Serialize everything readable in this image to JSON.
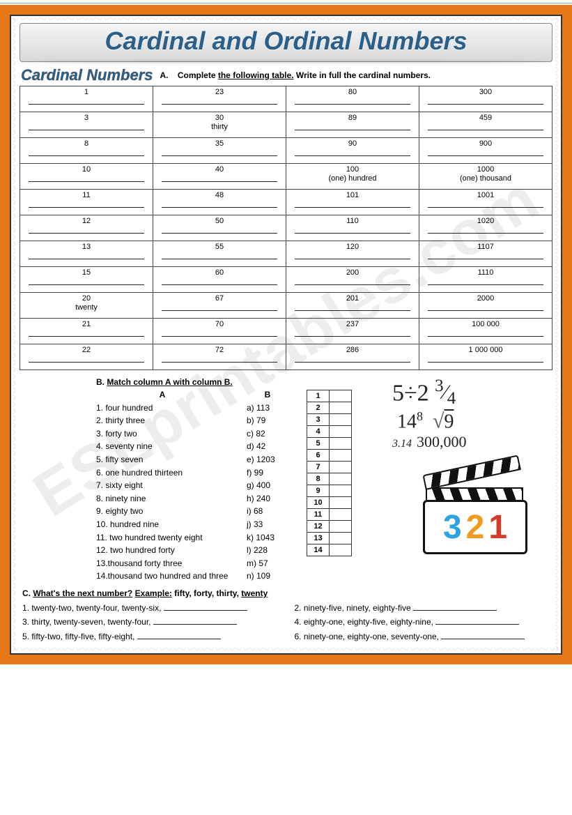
{
  "watermark": "ESLprintables.com",
  "page_title": "Cardinal and Ordinal Numbers",
  "section_label": "Cardinal Numbers",
  "sectionA": {
    "letter": "A.",
    "instruction_pre": "Complete ",
    "instruction_ul": "the following table.",
    "instruction_post": " Write in full the cardinal numbers.",
    "rows": [
      [
        {
          "n": "1",
          "a": ""
        },
        {
          "n": "23",
          "a": ""
        },
        {
          "n": "80",
          "a": ""
        },
        {
          "n": "300",
          "a": ""
        }
      ],
      [
        {
          "n": "3",
          "a": ""
        },
        {
          "n": "30",
          "a": "thirty"
        },
        {
          "n": "89",
          "a": ""
        },
        {
          "n": "459",
          "a": ""
        }
      ],
      [
        {
          "n": "8",
          "a": ""
        },
        {
          "n": "35",
          "a": ""
        },
        {
          "n": "90",
          "a": ""
        },
        {
          "n": "900",
          "a": ""
        }
      ],
      [
        {
          "n": "10",
          "a": ""
        },
        {
          "n": "40",
          "a": ""
        },
        {
          "n": "100",
          "a": "(one) hundred"
        },
        {
          "n": "1000",
          "a": "(one) thousand"
        }
      ],
      [
        {
          "n": "11",
          "a": ""
        },
        {
          "n": "48",
          "a": ""
        },
        {
          "n": "101",
          "a": ""
        },
        {
          "n": "1001",
          "a": ""
        }
      ],
      [
        {
          "n": "12",
          "a": ""
        },
        {
          "n": "50",
          "a": ""
        },
        {
          "n": "110",
          "a": ""
        },
        {
          "n": "1020",
          "a": ""
        }
      ],
      [
        {
          "n": "13",
          "a": ""
        },
        {
          "n": "55",
          "a": ""
        },
        {
          "n": "120",
          "a": ""
        },
        {
          "n": "1107",
          "a": ""
        }
      ],
      [
        {
          "n": "15",
          "a": ""
        },
        {
          "n": "60",
          "a": ""
        },
        {
          "n": "200",
          "a": ""
        },
        {
          "n": "1110",
          "a": ""
        }
      ],
      [
        {
          "n": "20",
          "a": "twenty"
        },
        {
          "n": "67",
          "a": ""
        },
        {
          "n": "201",
          "a": ""
        },
        {
          "n": "2000",
          "a": ""
        }
      ],
      [
        {
          "n": "21",
          "a": ""
        },
        {
          "n": "70",
          "a": ""
        },
        {
          "n": "237",
          "a": ""
        },
        {
          "n": "100 000",
          "a": ""
        }
      ],
      [
        {
          "n": "22",
          "a": ""
        },
        {
          "n": "72",
          "a": ""
        },
        {
          "n": "286",
          "a": ""
        },
        {
          "n": "1 000 000",
          "a": ""
        }
      ]
    ]
  },
  "sectionB": {
    "title": "B. ",
    "title_ul": "Match column A with column B.",
    "headA": "A",
    "headB": "B",
    "colA": [
      "1. four hundred",
      "2. thirty three",
      "3. forty two",
      "4. seventy nine",
      "5. fifty seven",
      "6. one hundred thirteen",
      "7. sixty eight",
      "8. ninety nine",
      "9. eighty two",
      "10. hundred nine",
      "11. two hundred twenty eight",
      "12. two hundred forty",
      "13.thousand forty three",
      "14.thousand two hundred and three"
    ],
    "colB": [
      "a) 113",
      "b) 79",
      "c) 82",
      "d) 42",
      "e) 1203",
      "f) 99",
      "g) 400",
      "h) 240",
      "i) 68",
      "j) 33",
      "k) 1043",
      "l) 228",
      "m) 57",
      "n) 109"
    ],
    "gridNums": [
      "1",
      "2",
      "3",
      "4",
      "5",
      "6",
      "7",
      "8",
      "9",
      "10",
      "11",
      "12",
      "13",
      "14"
    ]
  },
  "math": {
    "l1a": "5",
    "div": "÷",
    "l1b": "2",
    "frac_n": "3",
    "frac_d": "4",
    "l2a": "14",
    "exp": "8",
    "root": "√",
    "rootv": "9",
    "pi": "3.14",
    "num300": "300,000"
  },
  "clapper": {
    "d3": "3",
    "d2": "2",
    "d1": "1"
  },
  "sectionC": {
    "title_pre": "C. ",
    "title_ul": "What's the next number?",
    "example_label": "   Example:",
    "example_seq": "   fifty, forty, thirty,   ",
    "example_ans": "twenty",
    "items": [
      "1. twenty-two, twenty-four, twenty-six, ",
      "2.  ninety-five, ninety, eighty-five ",
      "3. thirty, twenty-seven, twenty-four,  ",
      "4. eighty-one, eighty-five, eighty-nine, ",
      "5. fifty-two, fifty-five, fifty-eight, ",
      "6. ninety-one, eighty-one, seventy-one, "
    ]
  },
  "colors": {
    "frame": "#e67817",
    "title_text": "#2a5f8a"
  }
}
